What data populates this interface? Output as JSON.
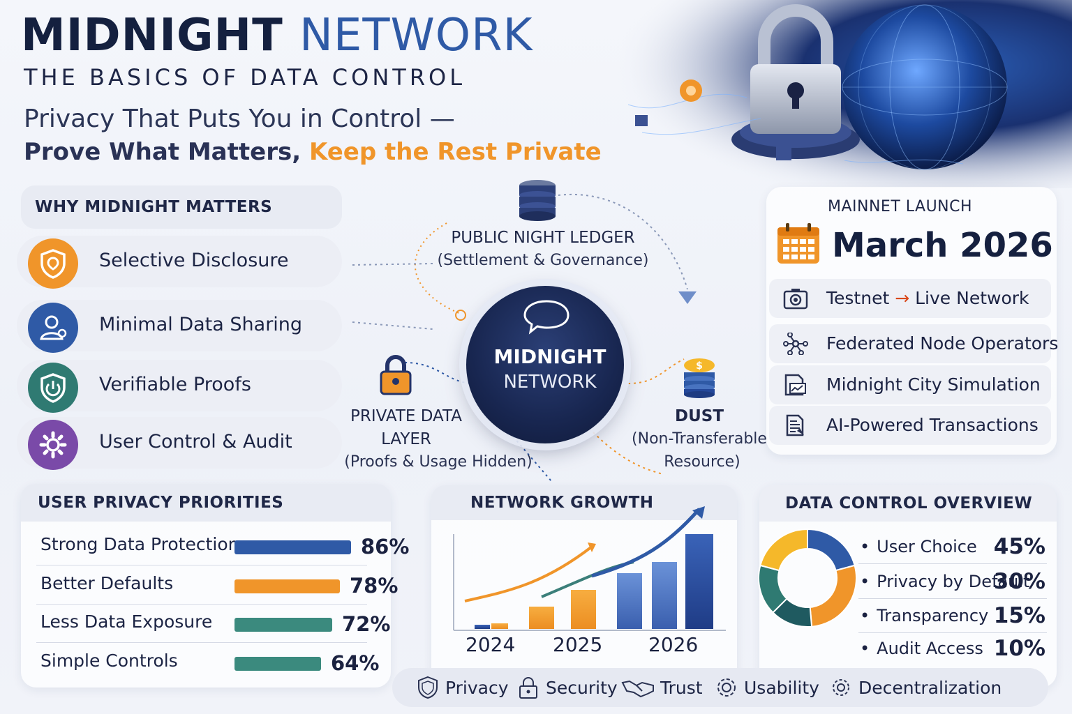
{
  "header": {
    "title_part1": "MIDNIGHT",
    "title_part2": "NETWORK",
    "subtitle": "THE BASICS OF DATA CONTROL",
    "tagline_line1": "Privacy That Puts You in Control —",
    "tagline_line2_dark": "Prove What Matters,",
    "tagline_line2_orange": "Keep the Rest Private"
  },
  "why": {
    "heading": "WHY MIDNIGHT MATTERS",
    "items": [
      {
        "label": "Selective Disclosure",
        "icon": "shield-icon",
        "color": "#f0952a"
      },
      {
        "label": "Minimal Data Sharing",
        "icon": "user-icon",
        "color": "#2f5aa6"
      },
      {
        "label": "Verifiable Proofs",
        "icon": "power-shield-icon",
        "color": "#2f7a72"
      },
      {
        "label": "User Control & Audit",
        "icon": "gear-icon",
        "color": "#7a4aa8"
      }
    ]
  },
  "diagram": {
    "center_line1": "MIDNIGHT",
    "center_line2": "NETWORK",
    "ledger_title": "PUBLIC NIGHT LEDGER",
    "ledger_sub": "(Settlement & Governance)",
    "private_title_1": "PRIVATE DATA",
    "private_title_2": "LAYER",
    "private_sub": "(Proofs & Usage Hidden)",
    "dust_title": "DUST",
    "dust_sub_1": "(Non-Transferable",
    "dust_sub_2": "Resource)"
  },
  "mainnet": {
    "heading": "MAINNET LAUNCH",
    "date": "March 2026",
    "rows": [
      {
        "label_a": "Testnet",
        "arrow": "→",
        "label_b": "Live Network",
        "icon": "camera-icon"
      },
      {
        "label": "Federated Node Operators",
        "icon": "nodes-icon"
      },
      {
        "label": "Midnight City Simulation",
        "icon": "document-chart-icon"
      },
      {
        "label": "AI-Powered Transactions",
        "icon": "document-icon"
      }
    ]
  },
  "priorities": {
    "heading": "USER PRIVACY PRIORITIES",
    "items": [
      {
        "label": "Strong Data Protection",
        "value": 86,
        "display": "86%",
        "color": "#2f5aa6"
      },
      {
        "label": "Better Defaults",
        "value": 78,
        "display": "78%",
        "color": "#f0952a"
      },
      {
        "label": "Less Data Exposure",
        "value": 72,
        "display": "72%",
        "color": "#3b8a7e"
      },
      {
        "label": "Simple Controls",
        "value": 64,
        "display": "64%",
        "color": "#3b8a7e"
      }
    ]
  },
  "growth": {
    "heading": "NETWORK GROWTH",
    "years": [
      "2024",
      "2025",
      "2026"
    ]
  },
  "overview": {
    "heading": "DATA CONTROL OVERVIEW",
    "bullet": "•",
    "items": [
      {
        "label": "User Choice",
        "value": 45,
        "display": "45%",
        "color": "#2f5aa6"
      },
      {
        "label": "Privacy by Default",
        "value": 30,
        "display": "30%",
        "color": "#f0952a"
      },
      {
        "label": "Transparency",
        "value": 15,
        "display": "15%",
        "color": "#1f5a60"
      },
      {
        "label": "Audit Access",
        "value": 10,
        "display": "10%",
        "color": "#2f7a72"
      }
    ],
    "extra_segment_color": "#f5b82a"
  },
  "footer": {
    "items": [
      {
        "label": "Privacy",
        "icon": "shield-icon"
      },
      {
        "label": "Security",
        "icon": "lock-icon"
      },
      {
        "label": "Trust",
        "icon": "handshake-icon"
      },
      {
        "label": "Usability",
        "icon": "gear-icon"
      },
      {
        "label": "Decentralization",
        "icon": "cog-icon"
      }
    ]
  }
}
